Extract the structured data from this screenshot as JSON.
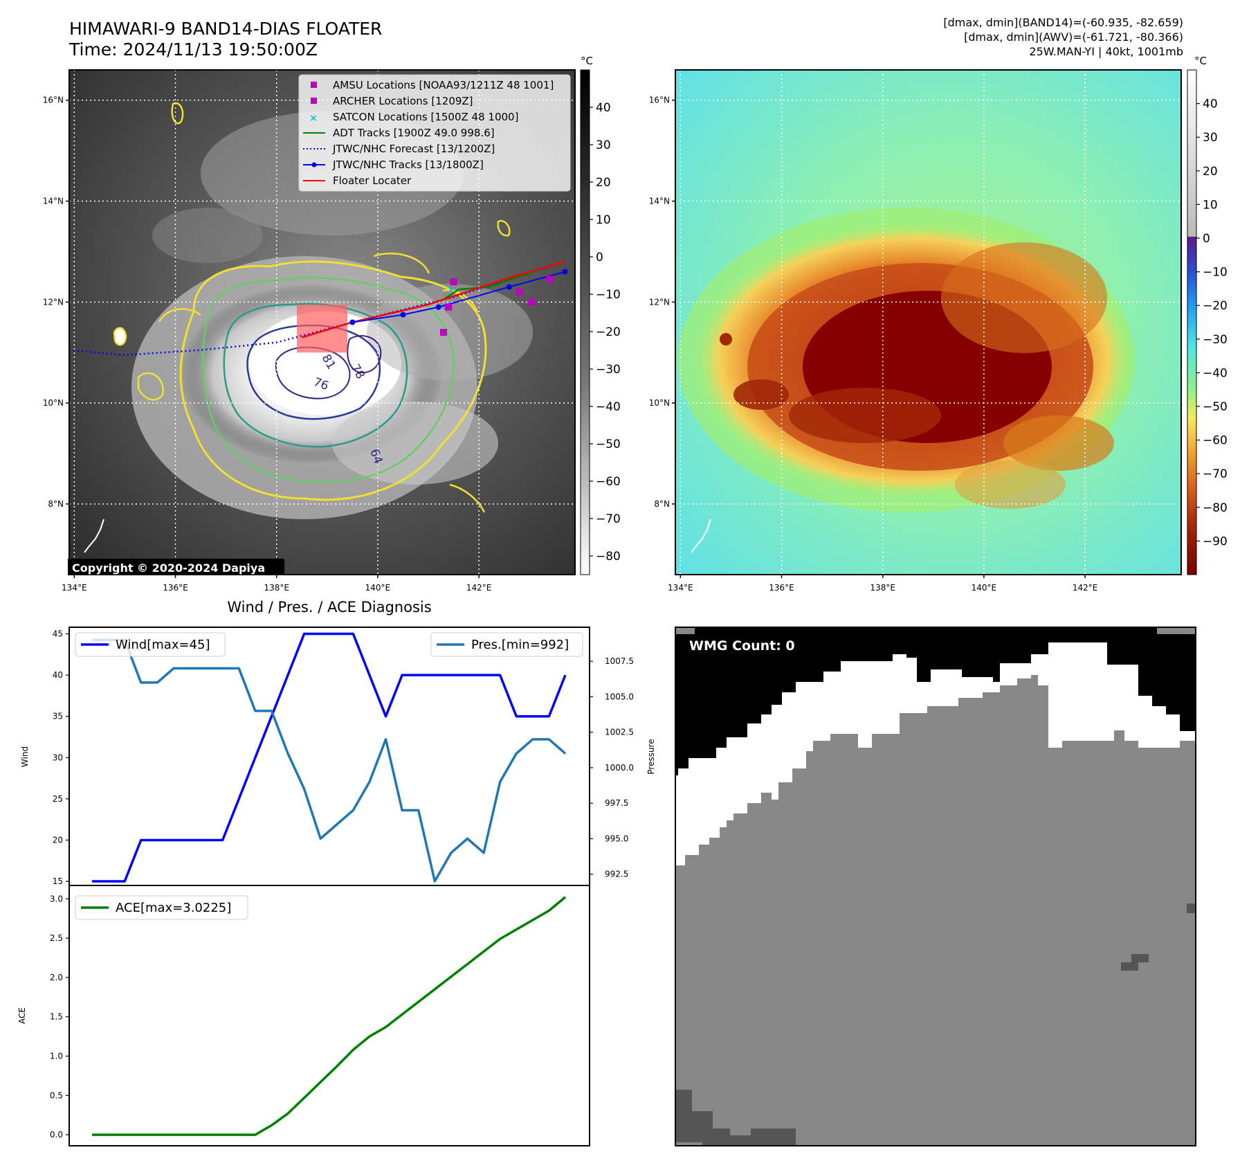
{
  "header": {
    "title": "HIMAWARI-9 BAND14-DIAS FLOATER",
    "time": "Time: 2024/11/13 19:50:00Z",
    "stats_band14": "[dmax, dmin](BAND14)=(-60.935, -82.659)",
    "stats_awv": "[dmax, dmin](AWV)=(-61.721, -80.366)",
    "storm": "25W.MAN-YI | 40kt, 1001mb"
  },
  "colors": {
    "wind": "#0000ff",
    "pres": "#1f77b4",
    "ace": "#008000",
    "adt": "#008000",
    "forecast": "#0000ff",
    "jtwc": "#0000ff",
    "floater": "#ff0000",
    "amsu": "#c000c0",
    "archer": "#c000c0",
    "satcon": "#17becf"
  },
  "maps": {
    "unit": "°C",
    "lon_ticks": [
      "134°E",
      "136°E",
      "138°E",
      "140°E",
      "142°E"
    ],
    "lat_ticks": [
      "16°N",
      "14°N",
      "12°N",
      "10°N",
      "8°N"
    ],
    "gray_colorbar_ticks": [
      "40",
      "30",
      "20",
      "10",
      "0",
      "−10",
      "−20",
      "−30",
      "−40",
      "−50",
      "−60",
      "−70",
      "−80"
    ],
    "color_colorbar_ticks": [
      "40",
      "30",
      "20",
      "10",
      "0",
      "−10",
      "−20",
      "−30",
      "−40",
      "−50",
      "−60",
      "−70",
      "−80",
      "−90"
    ],
    "contour_labels": [
      "81",
      "78",
      "76",
      "64"
    ],
    "copyright": "Copyright © 2020-2024 Dapiya",
    "legend": [
      "AMSU Locations [NOAA93/1211Z 48 1001]",
      "ARCHER Locations [1209Z]",
      "SATCON Locations [1500Z 48 1000]",
      "ADT Tracks [1900Z 49.0 998.6]",
      "JTWC/NHC Forecast [13/1200Z]",
      "JTWC/NHC Tracks [13/1800Z]",
      "Floater Locater"
    ],
    "tracks": {
      "jtwc_track": [
        [
          139.5,
          11.6
        ],
        [
          140.5,
          11.75
        ],
        [
          141.2,
          11.9
        ],
        [
          142.6,
          12.3
        ],
        [
          143.7,
          12.6
        ]
      ],
      "jtwc_forecast": [
        [
          133.9,
          11.05
        ],
        [
          135.0,
          10.95
        ],
        [
          136.5,
          11.05
        ],
        [
          138.0,
          11.2
        ],
        [
          139.5,
          11.6
        ],
        [
          141.5,
          12.1
        ],
        [
          143.7,
          12.8
        ]
      ],
      "adt_track": [
        [
          141.3,
          12.05
        ],
        [
          141.6,
          12.25
        ],
        [
          142.2,
          12.3
        ],
        [
          143.5,
          12.75
        ]
      ],
      "floater_track": [
        [
          138.5,
          11.3
        ],
        [
          139.5,
          11.6
        ],
        [
          141.0,
          11.95
        ],
        [
          142.5,
          12.45
        ],
        [
          143.7,
          12.8
        ]
      ],
      "amsu_points": [
        [
          141.5,
          12.4
        ],
        [
          143.4,
          12.45
        ],
        [
          142.8,
          12.2
        ],
        [
          141.4,
          11.9
        ],
        [
          143.05,
          12.0
        ],
        [
          141.3,
          11.4
        ]
      ],
      "archer_points": [],
      "satcon_points": [
        [
          141.45,
          12.25
        ]
      ],
      "floater_box": [
        138.4,
        11.0,
        139.4,
        11.95
      ]
    }
  },
  "diag_title": "Wind / Pres. / ACE Diagnosis",
  "wmg": {
    "label": "WMG Count: 0",
    "ylabel": "Pressure"
  },
  "chart_data": [
    {
      "type": "line",
      "title": "Wind / Pres. / ACE Diagnosis",
      "ylabel": "Wind",
      "y2label": "",
      "ylim": [
        14.5,
        45.8
      ],
      "y2lim": [
        991.7,
        1009.9
      ],
      "yticks": [
        15,
        20,
        25,
        30,
        35,
        40,
        45
      ],
      "y2ticks": [
        992.5,
        995.0,
        997.5,
        1000.0,
        1002.5,
        1005.0,
        1007.5
      ],
      "series": [
        {
          "name": "Wind[max=45]",
          "axis": "left",
          "values": [
            15,
            15,
            15,
            20,
            20,
            20,
            20,
            20,
            20,
            25,
            30,
            35,
            40,
            45,
            45,
            45,
            45,
            40,
            35,
            40,
            40,
            40,
            40,
            40,
            40,
            40,
            35,
            35,
            35,
            40
          ]
        },
        {
          "name": "Pres.[min=992]",
          "axis": "right",
          "values": [
            1009,
            1009,
            1009,
            1006,
            1006,
            1007,
            1007,
            1007,
            1007,
            1007,
            1004,
            1004,
            1001,
            998.5,
            995,
            996,
            997,
            999,
            1002,
            997,
            997,
            992,
            994,
            995,
            994,
            999,
            1001,
            1002,
            1002,
            1001
          ]
        }
      ]
    },
    {
      "type": "line",
      "ylabel": "ACE",
      "ylim": [
        -0.14,
        3.17
      ],
      "yticks": [
        0.0,
        0.5,
        1.0,
        1.5,
        2.0,
        2.5,
        3.0
      ],
      "series": [
        {
          "name": "ACE[max=3.0225]",
          "values": [
            0.0,
            0.0,
            0.0,
            0.0,
            0.0,
            0.0,
            0.0,
            0.0,
            0.0,
            0.0,
            0.0,
            0.12,
            0.27,
            0.47,
            0.67,
            0.87,
            1.08,
            1.25,
            1.37,
            1.53,
            1.69,
            1.85,
            2.01,
            2.17,
            2.33,
            2.49,
            2.61,
            2.73,
            2.85,
            3.0225
          ]
        }
      ]
    }
  ]
}
